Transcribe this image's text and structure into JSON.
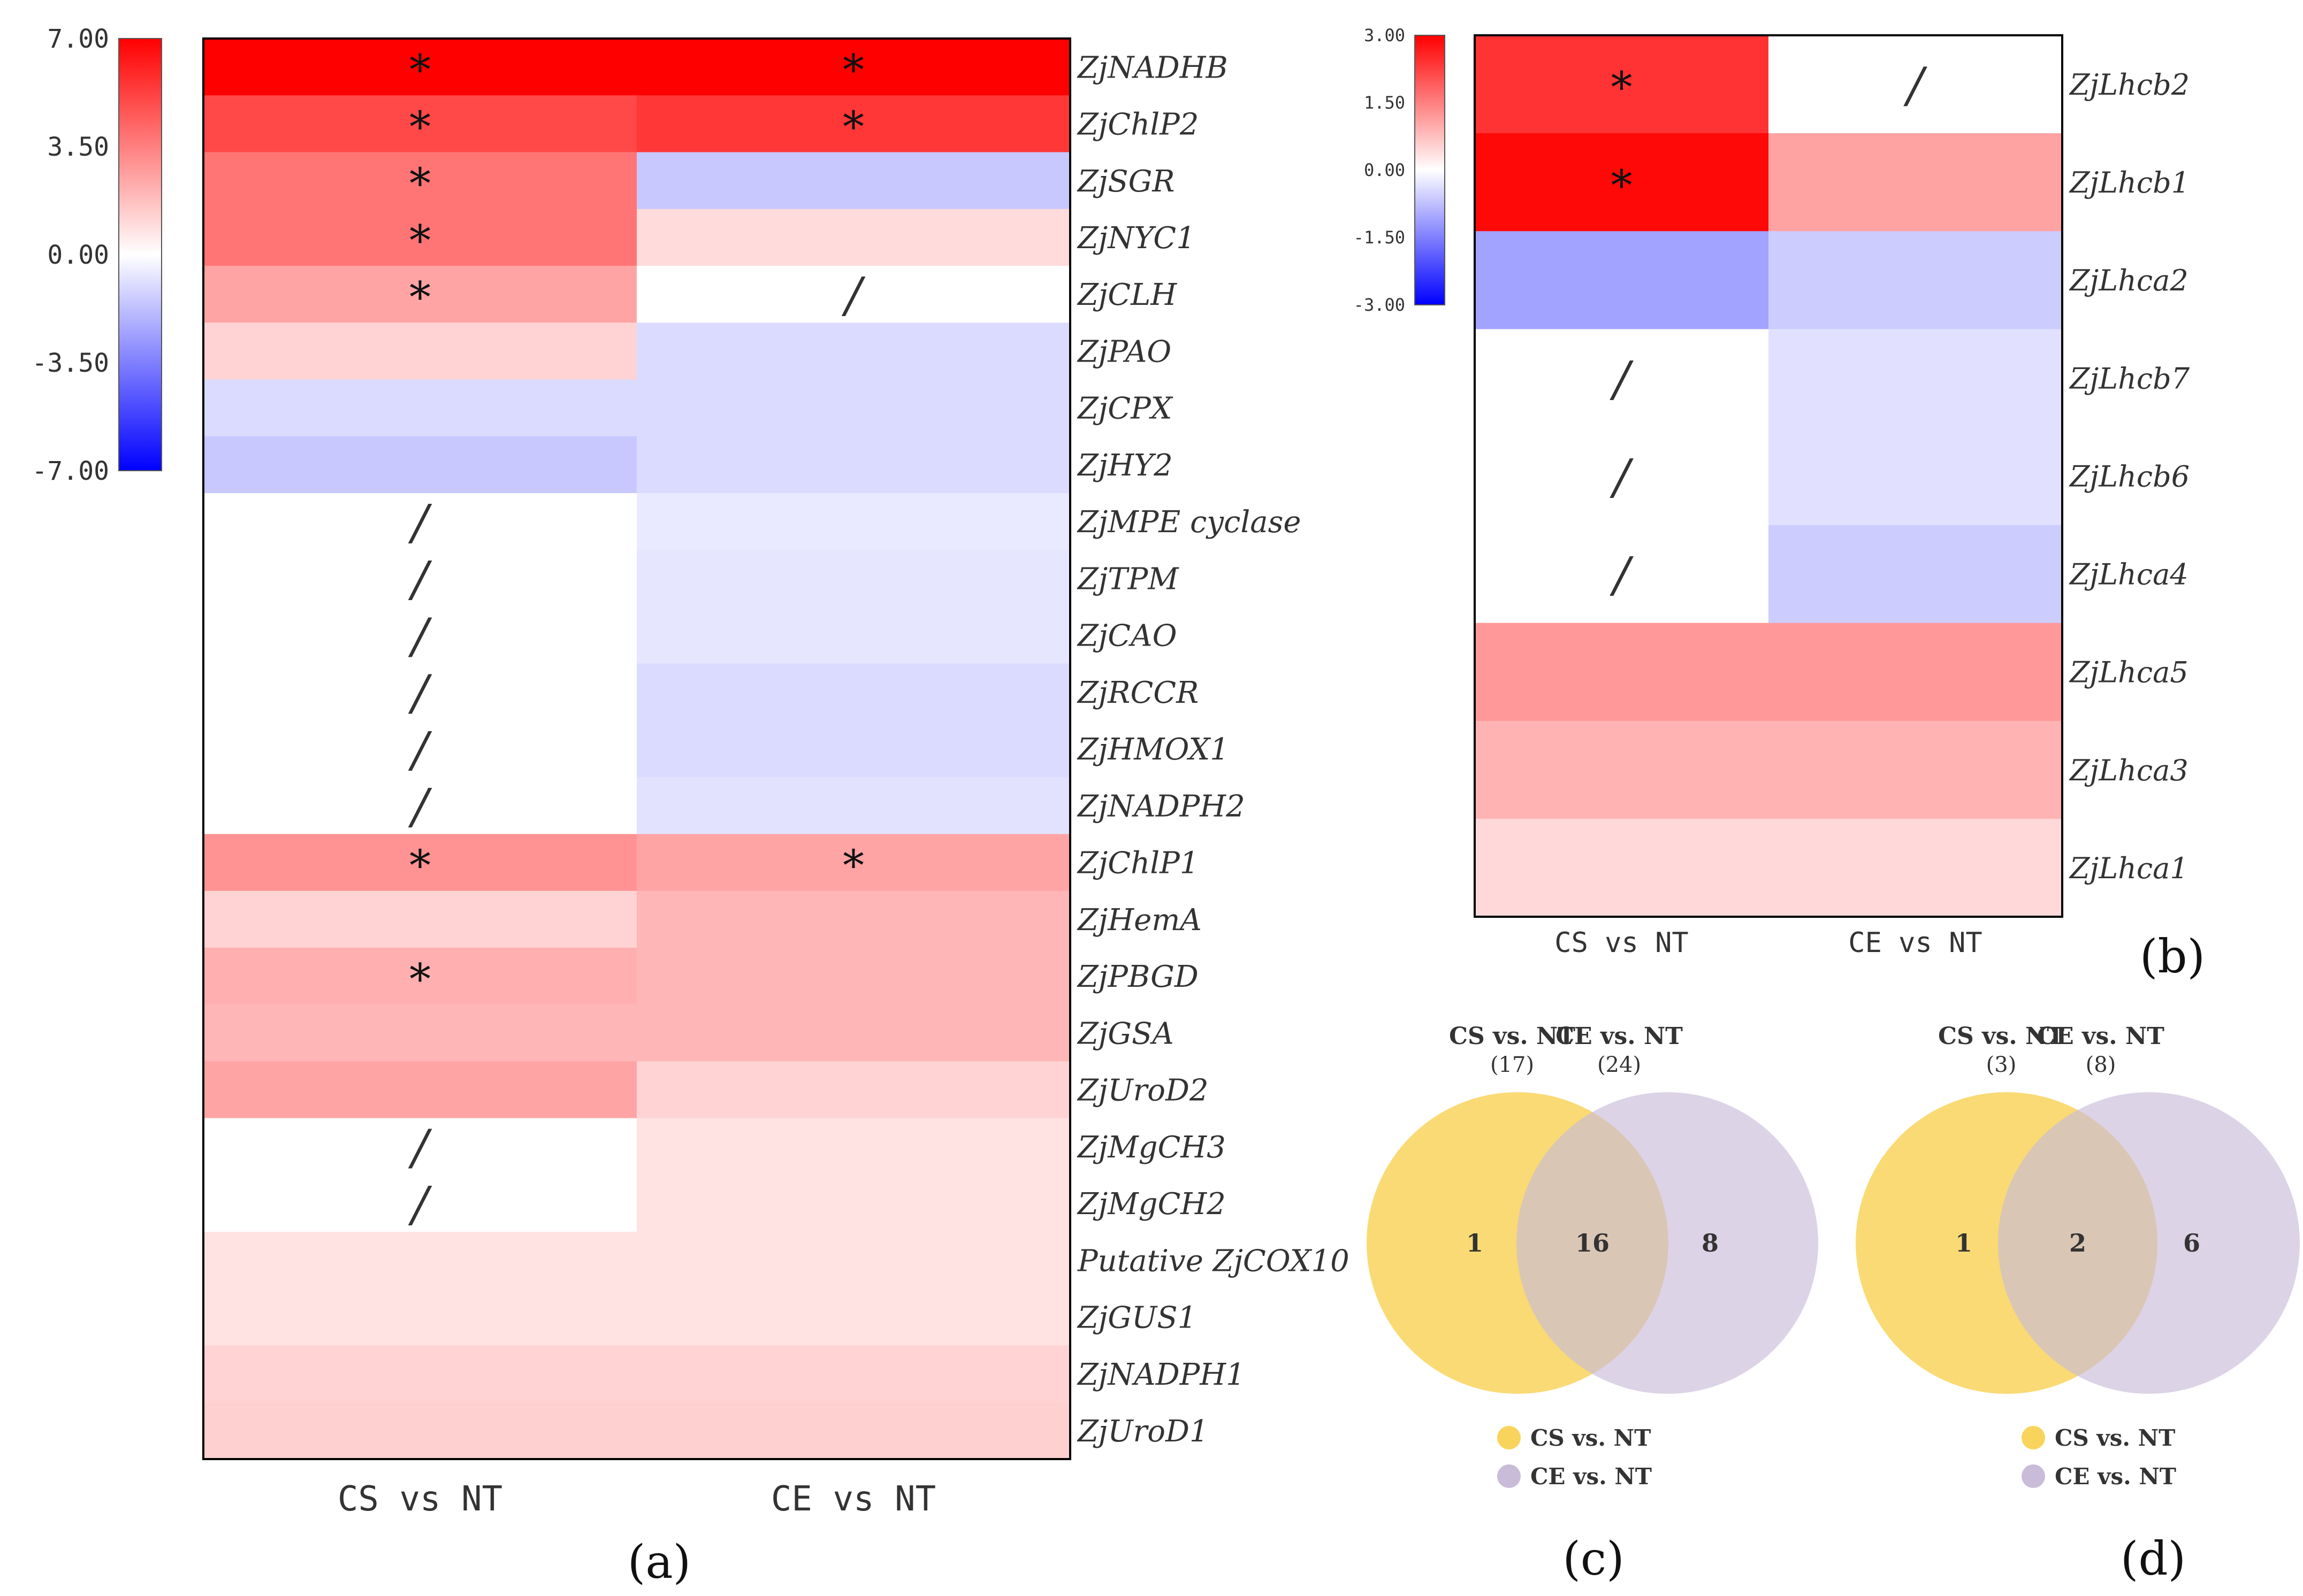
{
  "chart_data": [
    {
      "type": "heatmap",
      "panel_label": "(a)",
      "columns": [
        "CS vs NT",
        "CE vs NT"
      ],
      "rows": [
        "ZjNADHB",
        "ZjChlP2",
        "ZjSGR",
        "ZjNYC1",
        "ZjCLH",
        "ZjPAO",
        "ZjCPX",
        "ZjHY2",
        "ZjMPE cyclase",
        "ZjTPM",
        "ZjCAO",
        "ZjRCCR",
        "ZjHMOX1",
        "ZjNADPH2",
        "ZjChlP1",
        "ZjHemA",
        "ZjPBGD",
        "ZjGSA",
        "ZjUroD2",
        "ZjMgCH3",
        "ZjMgCH2",
        "Putative ZjCOX10",
        "ZjGUS1",
        "ZjNADPH1",
        "ZjUroD1"
      ],
      "values": [
        [
          7.0,
          7.0
        ],
        [
          5.0,
          5.5
        ],
        [
          3.8,
          -1.5
        ],
        [
          3.8,
          1.0
        ],
        [
          2.5,
          null
        ],
        [
          1.2,
          -1.0
        ],
        [
          -1.0,
          -1.0
        ],
        [
          -1.5,
          -1.0
        ],
        [
          null,
          -0.6
        ],
        [
          null,
          -0.7
        ],
        [
          null,
          -0.7
        ],
        [
          null,
          -1.0
        ],
        [
          null,
          -1.0
        ],
        [
          null,
          -0.8
        ],
        [
          3.0,
          2.5
        ],
        [
          1.2,
          2.0
        ],
        [
          2.2,
          2.0
        ],
        [
          2.0,
          2.0
        ],
        [
          2.5,
          1.2
        ],
        [
          null,
          0.8
        ],
        [
          null,
          0.8
        ],
        [
          0.8,
          0.8
        ],
        [
          0.8,
          0.8
        ],
        [
          1.2,
          1.2
        ],
        [
          1.3,
          1.3
        ]
      ],
      "significant": [
        [
          true,
          true
        ],
        [
          true,
          true
        ],
        [
          true,
          false
        ],
        [
          true,
          false
        ],
        [
          true,
          false
        ],
        [
          false,
          false
        ],
        [
          false,
          false
        ],
        [
          false,
          false
        ],
        [
          false,
          false
        ],
        [
          false,
          false
        ],
        [
          false,
          false
        ],
        [
          false,
          false
        ],
        [
          false,
          false
        ],
        [
          false,
          false
        ],
        [
          true,
          true
        ],
        [
          false,
          false
        ],
        [
          true,
          false
        ],
        [
          false,
          false
        ],
        [
          false,
          false
        ],
        [
          false,
          false
        ],
        [
          false,
          false
        ],
        [
          false,
          false
        ],
        [
          false,
          false
        ],
        [
          false,
          false
        ],
        [
          false,
          false
        ]
      ],
      "significance_mark": "*",
      "missing_mark": "/",
      "color_scale": {
        "min": -7.0,
        "max": 7.0,
        "min_color": "#0000ff",
        "mid_color": "#ffffff",
        "max_color": "#ff0000"
      },
      "colorbar_ticks": [
        "7.00",
        "3.50",
        "0.00",
        "-3.50",
        "-7.00"
      ]
    },
    {
      "type": "heatmap",
      "panel_label": "(b)",
      "columns": [
        "CS vs NT",
        "CE vs NT"
      ],
      "rows": [
        "ZjLhcb2",
        "ZjLhcb1",
        "ZjLhca2",
        "ZjLhcb7",
        "ZjLhcb6",
        "ZjLhca4",
        "ZjLhca5",
        "ZjLhca3",
        "ZjLhca1"
      ],
      "values": [
        [
          2.4,
          null
        ],
        [
          2.9,
          1.1
        ],
        [
          -1.1,
          -0.6
        ],
        [
          null,
          -0.35
        ],
        [
          null,
          -0.35
        ],
        [
          null,
          -0.6
        ],
        [
          1.2,
          1.2
        ],
        [
          0.9,
          0.9
        ],
        [
          0.45,
          0.45
        ]
      ],
      "significant": [
        [
          true,
          false
        ],
        [
          true,
          false
        ],
        [
          false,
          false
        ],
        [
          false,
          false
        ],
        [
          false,
          false
        ],
        [
          false,
          false
        ],
        [
          false,
          false
        ],
        [
          false,
          false
        ],
        [
          false,
          false
        ]
      ],
      "significance_mark": "*",
      "missing_mark": "/",
      "color_scale": {
        "min": -3.0,
        "max": 3.0,
        "min_color": "#0000ff",
        "mid_color": "#ffffff",
        "max_color": "#ff0000"
      },
      "colorbar_ticks": [
        "3.00",
        "1.50",
        "0.00",
        "-1.50",
        "-3.00"
      ]
    },
    {
      "type": "venn",
      "panel_label": "(c)",
      "sets": [
        {
          "name": "CS vs. NT",
          "total": "(17)",
          "color": "#f8d45c"
        },
        {
          "name": "CE vs. NT",
          "total": "(24)",
          "color": "#c9bcd8"
        }
      ],
      "regions": {
        "only_a": "1",
        "both": "16",
        "only_b": "8"
      },
      "legend": [
        "CS vs. NT",
        "CE vs. NT"
      ]
    },
    {
      "type": "venn",
      "panel_label": "(d)",
      "sets": [
        {
          "name": "CS vs. NT",
          "total": "(3)",
          "color": "#f8d45c"
        },
        {
          "name": "CE vs. NT",
          "total": "(8)",
          "color": "#c9bcd8"
        }
      ],
      "regions": {
        "only_a": "1",
        "both": "2",
        "only_b": "6"
      },
      "legend": [
        "CS vs. NT",
        "CE vs. NT"
      ]
    }
  ]
}
